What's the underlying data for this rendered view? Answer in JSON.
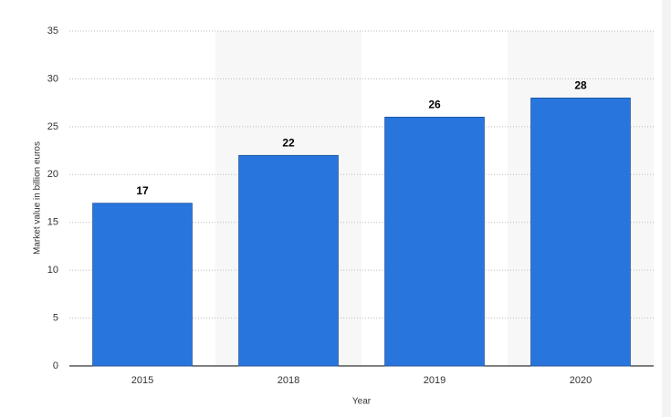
{
  "chart_data": {
    "type": "bar",
    "categories": [
      "2015",
      "2018",
      "2019",
      "2020"
    ],
    "values": [
      17,
      22,
      26,
      28
    ],
    "color": "#2876dd",
    "ylim": [
      0,
      35
    ],
    "yticks": [
      0,
      5,
      10,
      15,
      20,
      25,
      30,
      35
    ],
    "grid": true,
    "y_label": "Market value in billion euros",
    "x_label": "Year"
  }
}
